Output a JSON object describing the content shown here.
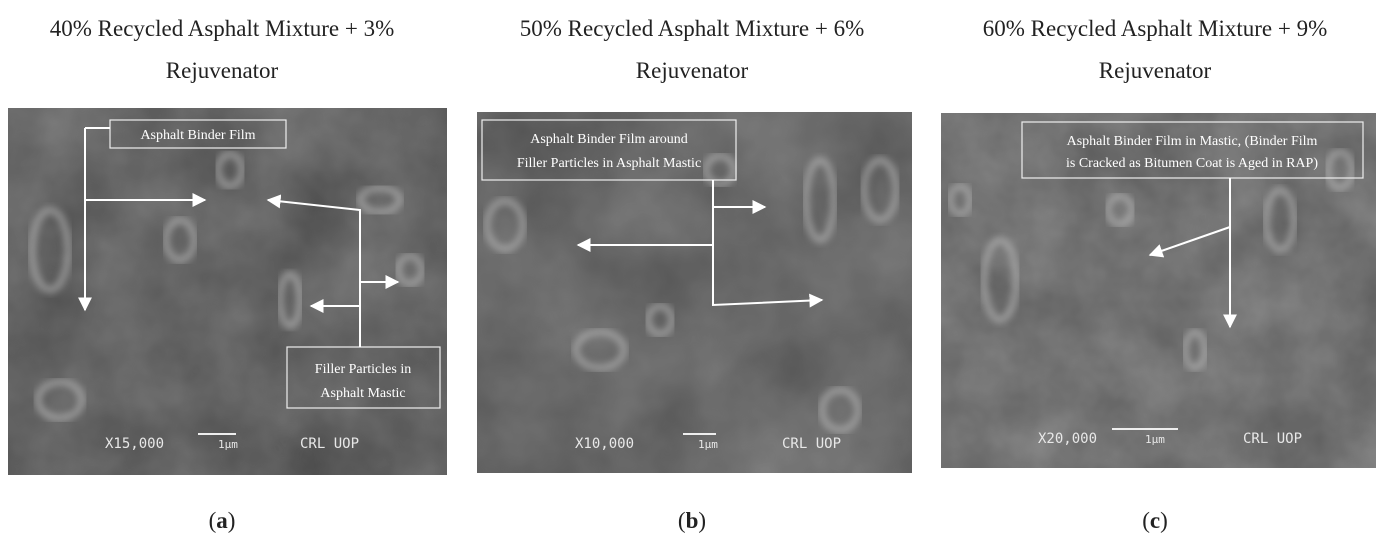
{
  "panels": [
    {
      "title_line1": "40% Recycled Asphalt Mixture + 3%",
      "title_line2": "Rejuvenator",
      "annotations": [
        [
          "Asphalt Binder Film"
        ],
        [
          "Filler Particles in",
          "Asphalt Mastic"
        ]
      ],
      "magnification": "X15,000",
      "scale": "1μm",
      "lab": "CRL UOP",
      "caption_open": "(",
      "caption_letter": "a",
      "caption_close": ")"
    },
    {
      "title_line1": "50% Recycled Asphalt Mixture + 6%",
      "title_line2": "Rejuvenator",
      "annotations": [
        [
          "Asphalt Binder Film around",
          "Filler Particles in Asphalt Mastic"
        ]
      ],
      "magnification": "X10,000",
      "scale": "1μm",
      "lab": "CRL UOP",
      "caption_open": "(",
      "caption_letter": "b",
      "caption_close": ")"
    },
    {
      "title_line1": "60% Recycled Asphalt Mixture + 9%",
      "title_line2": "Rejuvenator",
      "annotations": [
        [
          "Asphalt Binder Film in Mastic, (Binder Film",
          "is Cracked as Bitumen Coat is Aged in RAP)"
        ]
      ],
      "magnification": "X20,000",
      "scale": "1μm",
      "lab": "CRL UOP",
      "caption_open": "(",
      "caption_letter": "c",
      "caption_close": ")"
    }
  ]
}
